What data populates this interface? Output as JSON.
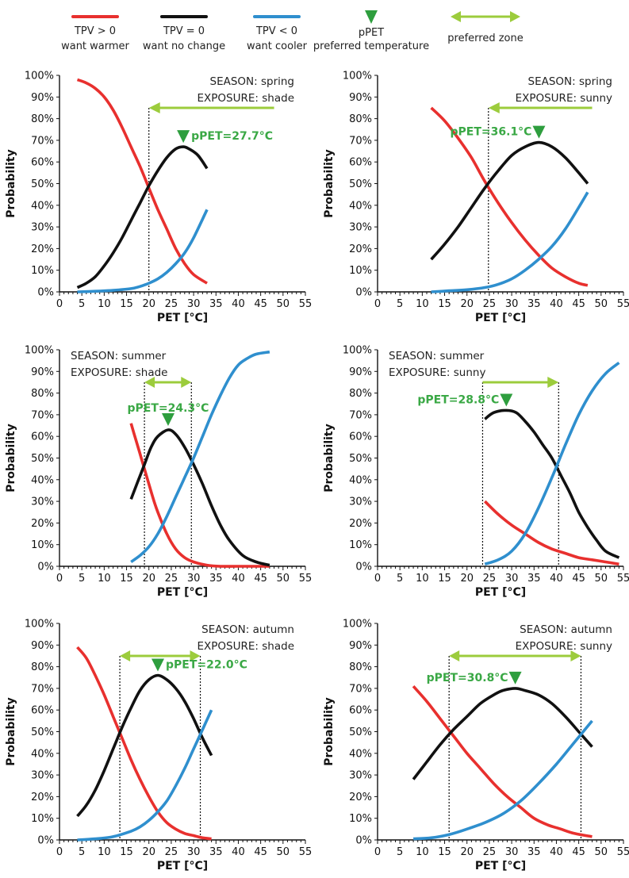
{
  "colors": {
    "warmer": "#e8302e",
    "nochange": "#111111",
    "cooler": "#2f8fce",
    "ppet": "#2e9e3e",
    "zone": "#9ccc3c",
    "ppet_text": "#3aa845"
  },
  "legend": [
    {
      "key": "warmer",
      "line1": "TPV > 0",
      "line2": "want warmer"
    },
    {
      "key": "nochange",
      "line1": "TPV = 0",
      "line2": "want no change"
    },
    {
      "key": "cooler",
      "line1": "TPV < 0",
      "line2": "want cooler"
    },
    {
      "key": "ppet",
      "line1": "pPET",
      "line2": "preferred temperature"
    },
    {
      "key": "zone",
      "line1": "preferred zone",
      "line2": ""
    }
  ],
  "chart_data": [
    {
      "type": "line",
      "season_label": "SEASON: spring",
      "exposure_label": "EXPOSURE: shade",
      "xlabel": "PET [°C]",
      "ylabel": "Probability",
      "xlim": [
        0,
        55
      ],
      "ylim": [
        0,
        100
      ],
      "xticks": [
        "0",
        "5",
        "10",
        "15",
        "20",
        "25",
        "30",
        "35",
        "40",
        "45",
        "50",
        "55"
      ],
      "yticks": [
        "0%",
        "10%",
        "20%",
        "30%",
        "40%",
        "50%",
        "60%",
        "70%",
        "80%",
        "90%",
        "100%"
      ],
      "ppet": 27.7,
      "ppet_label": "pPET=27.7°C",
      "zone": [
        20.0,
        48
      ],
      "series": [
        {
          "key": "warmer",
          "x": [
            4,
            6,
            8,
            10,
            12,
            14,
            16,
            18,
            20,
            22,
            24,
            26,
            28,
            30,
            33
          ],
          "y": [
            98,
            96.5,
            94,
            90,
            84,
            76,
            67,
            58,
            48,
            38,
            29,
            20,
            13,
            8,
            4
          ]
        },
        {
          "key": "nochange",
          "x": [
            4,
            6,
            8,
            10,
            12,
            14,
            16,
            18,
            20,
            22,
            24,
            26,
            27.7,
            29,
            31,
            33
          ],
          "y": [
            2,
            4,
            7,
            12,
            18,
            25,
            33,
            41,
            49,
            56,
            62,
            66,
            67,
            66,
            63,
            57
          ]
        },
        {
          "key": "cooler",
          "x": [
            4,
            8,
            12,
            16,
            18,
            20,
            22,
            24,
            26,
            28,
            30,
            33
          ],
          "y": [
            0,
            0.3,
            0.7,
            1.5,
            2.5,
            4,
            6,
            9,
            13,
            18,
            25,
            38
          ]
        }
      ]
    },
    {
      "type": "line",
      "season_label": "SEASON: spring",
      "exposure_label": "EXPOSURE: sunny",
      "xlabel": "PET [°C]",
      "ylabel": "Probability",
      "xlim": [
        0,
        55
      ],
      "ylim": [
        0,
        100
      ],
      "xticks": [
        "0",
        "5",
        "10",
        "15",
        "20",
        "25",
        "30",
        "35",
        "40",
        "45",
        "50",
        "55"
      ],
      "yticks": [
        "0%",
        "10%",
        "20%",
        "30%",
        "40%",
        "50%",
        "60%",
        "70%",
        "80%",
        "90%",
        "100%"
      ],
      "ppet": 36.1,
      "ppet_label": "pPET=36.1°C",
      "zone": [
        24.8,
        48
      ],
      "series": [
        {
          "key": "warmer",
          "x": [
            12,
            15,
            18,
            21,
            24,
            27,
            30,
            33,
            36,
            39,
            42,
            45,
            47
          ],
          "y": [
            85,
            79,
            71,
            62,
            51,
            41,
            32,
            24,
            17,
            11,
            7,
            4,
            3
          ]
        },
        {
          "key": "nochange",
          "x": [
            12,
            15,
            18,
            21,
            24,
            27,
            30,
            33,
            36.1,
            39,
            42,
            45,
            47
          ],
          "y": [
            15,
            22,
            30,
            39,
            48,
            56,
            63,
            67,
            69,
            67,
            62,
            55,
            50
          ]
        },
        {
          "key": "cooler",
          "x": [
            12,
            16,
            20,
            24,
            27,
            30,
            33,
            36,
            39,
            42,
            45,
            47
          ],
          "y": [
            0,
            0.5,
            1,
            2,
            3.5,
            6,
            10,
            15,
            21,
            29,
            39,
            46
          ]
        }
      ]
    },
    {
      "type": "line",
      "season_label": "SEASON: summer",
      "exposure_label": "EXPOSURE: shade",
      "xlabel": "PET [°C]",
      "ylabel": "Probability",
      "xlim": [
        0,
        55
      ],
      "ylim": [
        0,
        100
      ],
      "xticks": [
        "0",
        "5",
        "10",
        "15",
        "20",
        "25",
        "30",
        "35",
        "40",
        "45",
        "50",
        "55"
      ],
      "yticks": [
        "0%",
        "10%",
        "20%",
        "30%",
        "40%",
        "50%",
        "60%",
        "70%",
        "80%",
        "90%",
        "100%"
      ],
      "ppet": 24.3,
      "ppet_label": "pPET=24.3°C",
      "zone": [
        19.0,
        29.5
      ],
      "series": [
        {
          "key": "warmer",
          "x": [
            16,
            17,
            18,
            19,
            20,
            21,
            22,
            24,
            26,
            28,
            30,
            33,
            36,
            40,
            47
          ],
          "y": [
            66,
            59,
            52,
            45,
            38,
            31,
            25,
            15,
            8,
            4,
            2,
            0.5,
            0,
            0,
            0
          ]
        },
        {
          "key": "nochange",
          "x": [
            16,
            17.5,
            19,
            20.5,
            22,
            24.3,
            26,
            28,
            30,
            32,
            34,
            36,
            38,
            41,
            44,
            47
          ],
          "y": [
            31,
            39,
            47,
            55,
            60,
            63,
            61,
            55,
            47,
            38,
            28,
            19,
            12,
            5,
            2,
            0.5
          ]
        },
        {
          "key": "cooler",
          "x": [
            16,
            18,
            20,
            22,
            24,
            26,
            28,
            30,
            32,
            34,
            36,
            38,
            40,
            42,
            44,
            47
          ],
          "y": [
            2,
            5,
            9,
            15,
            23,
            32,
            41,
            50,
            60,
            70,
            79,
            87,
            93,
            96,
            98,
            99
          ]
        }
      ]
    },
    {
      "type": "line",
      "season_label": "SEASON: summer",
      "exposure_label": "EXPOSURE: sunny",
      "xlabel": "PET [°C]",
      "ylabel": "Probability",
      "xlim": [
        0,
        55
      ],
      "ylim": [
        0,
        100
      ],
      "xticks": [
        "0",
        "5",
        "10",
        "15",
        "20",
        "25",
        "30",
        "35",
        "40",
        "45",
        "50",
        "55"
      ],
      "yticks": [
        "0%",
        "10%",
        "20%",
        "30%",
        "40%",
        "50%",
        "60%",
        "70%",
        "80%",
        "90%",
        "100%"
      ],
      "ppet": 28.8,
      "ppet_label": "pPET=28.8°C",
      "zone": [
        23.5,
        40.5
      ],
      "series": [
        {
          "key": "warmer",
          "x": [
            24,
            27,
            30,
            33,
            36,
            39,
            42,
            45,
            48,
            51,
            54
          ],
          "y": [
            30,
            24,
            19,
            15,
            11,
            8,
            6,
            4,
            3,
            2,
            1
          ]
        },
        {
          "key": "nochange",
          "x": [
            24,
            26,
            28.8,
            31,
            33,
            35,
            37,
            39,
            41,
            43,
            45,
            47,
            49,
            51,
            54
          ],
          "y": [
            68,
            71,
            72,
            71,
            67,
            62,
            56,
            50,
            42,
            34,
            25,
            18,
            12,
            7,
            4
          ]
        },
        {
          "key": "cooler",
          "x": [
            24,
            27,
            30,
            33,
            36,
            39,
            42,
            45,
            48,
            51,
            54
          ],
          "y": [
            1,
            3,
            7,
            15,
            27,
            41,
            56,
            70,
            81,
            89,
            94
          ]
        }
      ]
    },
    {
      "type": "line",
      "season_label": "SEASON: autumn",
      "exposure_label": "EXPOSURE: shade",
      "xlabel": "PET [°C]",
      "ylabel": "Probability",
      "xlim": [
        0,
        55
      ],
      "ylim": [
        0,
        100
      ],
      "xticks": [
        "0",
        "5",
        "10",
        "15",
        "20",
        "25",
        "30",
        "35",
        "40",
        "45",
        "50",
        "55"
      ],
      "yticks": [
        "0%",
        "10%",
        "20%",
        "30%",
        "40%",
        "50%",
        "60%",
        "70%",
        "80%",
        "90%",
        "100%"
      ],
      "ppet": 22.0,
      "ppet_label": "pPET=22.0°C",
      "zone": [
        13.5,
        31.5
      ],
      "series": [
        {
          "key": "warmer",
          "x": [
            4,
            6,
            8,
            10,
            12,
            14,
            16,
            18,
            20,
            22,
            24,
            26,
            28,
            30,
            32,
            34
          ],
          "y": [
            89,
            84,
            76,
            67,
            57,
            47,
            37,
            28,
            20,
            13,
            8,
            5,
            3,
            2,
            1,
            0.5
          ]
        },
        {
          "key": "nochange",
          "x": [
            4,
            6,
            8,
            10,
            12,
            14,
            16,
            18,
            20,
            22,
            24,
            26,
            28,
            30,
            32,
            34
          ],
          "y": [
            11,
            16,
            23,
            32,
            42,
            52,
            61,
            69,
            74,
            76,
            74,
            70,
            64,
            56,
            47,
            39
          ]
        },
        {
          "key": "cooler",
          "x": [
            4,
            8,
            12,
            16,
            18,
            20,
            22,
            24,
            26,
            28,
            30,
            32,
            34
          ],
          "y": [
            0,
            0.5,
            1.5,
            4,
            6,
            9,
            13,
            18,
            25,
            33,
            42,
            51,
            60
          ]
        }
      ]
    },
    {
      "type": "line",
      "season_label": "SEASON: autumn",
      "exposure_label": "EXPOSURE: sunny",
      "xlabel": "PET [°C]",
      "ylabel": "Probability",
      "xlim": [
        0,
        55
      ],
      "ylim": [
        0,
        100
      ],
      "xticks": [
        "0",
        "5",
        "10",
        "15",
        "20",
        "25",
        "30",
        "35",
        "40",
        "45",
        "50",
        "55"
      ],
      "yticks": [
        "0%",
        "10%",
        "20%",
        "30%",
        "40%",
        "50%",
        "60%",
        "70%",
        "80%",
        "90%",
        "100%"
      ],
      "ppet": 30.8,
      "ppet_label": "pPET=30.8°C",
      "zone": [
        16.0,
        45.5
      ],
      "series": [
        {
          "key": "warmer",
          "x": [
            8,
            11,
            14,
            17,
            20,
            23,
            26,
            29,
            32,
            35,
            38,
            41,
            44,
            48
          ],
          "y": [
            71,
            64,
            56,
            48,
            40,
            33,
            26,
            20,
            15,
            10,
            7,
            5,
            3,
            1.5
          ]
        },
        {
          "key": "nochange",
          "x": [
            8,
            11,
            14,
            17,
            20,
            23,
            26,
            28,
            30.8,
            33,
            36,
            39,
            42,
            45,
            48
          ],
          "y": [
            28,
            36,
            44,
            51,
            57,
            63,
            67,
            69,
            70,
            69,
            67,
            63,
            57,
            50,
            43
          ]
        },
        {
          "key": "cooler",
          "x": [
            8,
            12,
            16,
            20,
            24,
            28,
            32,
            36,
            40,
            44,
            48
          ],
          "y": [
            0.5,
            1,
            2.5,
            5,
            8,
            12,
            18,
            26,
            35,
            45,
            55
          ]
        }
      ]
    }
  ]
}
